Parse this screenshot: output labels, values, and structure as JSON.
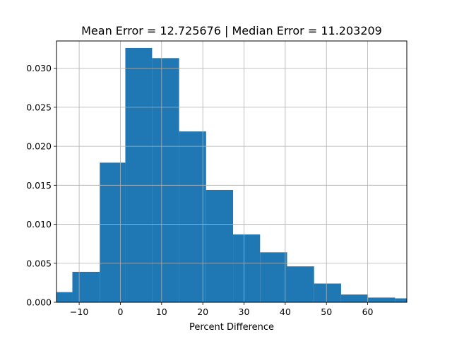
{
  "chart_data": {
    "type": "bar",
    "title": "Mean Error = 12.725676 | Median Error = 11.203209",
    "xlabel": "Percent Difference",
    "ylabel": "",
    "xlim": [
      -15.5,
      69.5
    ],
    "ylim": [
      0,
      0.0335
    ],
    "grid": true,
    "bar_color": "#1f77b4",
    "bins": [
      {
        "x0": -15.5,
        "x1": -11.65,
        "value": 0.0013
      },
      {
        "x0": -11.65,
        "x1": -5.0,
        "value": 0.0039
      },
      {
        "x0": -5.0,
        "x1": 1.2,
        "value": 0.0179
      },
      {
        "x0": 1.2,
        "x1": 7.7,
        "value": 0.0326
      },
      {
        "x0": 7.7,
        "x1": 14.25,
        "value": 0.0313
      },
      {
        "x0": 14.25,
        "x1": 20.8,
        "value": 0.0219
      },
      {
        "x0": 20.8,
        "x1": 27.35,
        "value": 0.0144
      },
      {
        "x0": 27.35,
        "x1": 33.9,
        "value": 0.0087
      },
      {
        "x0": 33.9,
        "x1": 40.45,
        "value": 0.0064
      },
      {
        "x0": 40.45,
        "x1": 47.0,
        "value": 0.0046
      },
      {
        "x0": 47.0,
        "x1": 53.55,
        "value": 0.0024
      },
      {
        "x0": 53.55,
        "x1": 60.1,
        "value": 0.001
      },
      {
        "x0": 60.1,
        "x1": 66.65,
        "value": 0.0006
      },
      {
        "x0": 66.65,
        "x1": 69.5,
        "value": 0.0005
      }
    ],
    "xticks": [
      {
        "value": -10,
        "label": "−10"
      },
      {
        "value": 0,
        "label": "0"
      },
      {
        "value": 10,
        "label": "10"
      },
      {
        "value": 20,
        "label": "20"
      },
      {
        "value": 30,
        "label": "30"
      },
      {
        "value": 40,
        "label": "40"
      },
      {
        "value": 50,
        "label": "50"
      },
      {
        "value": 60,
        "label": "60"
      }
    ],
    "yticks": [
      {
        "value": 0.0,
        "label": "0.000"
      },
      {
        "value": 0.005,
        "label": "0.005"
      },
      {
        "value": 0.01,
        "label": "0.010"
      },
      {
        "value": 0.015,
        "label": "0.015"
      },
      {
        "value": 0.02,
        "label": "0.020"
      },
      {
        "value": 0.025,
        "label": "0.025"
      },
      {
        "value": 0.03,
        "label": "0.030"
      }
    ]
  }
}
